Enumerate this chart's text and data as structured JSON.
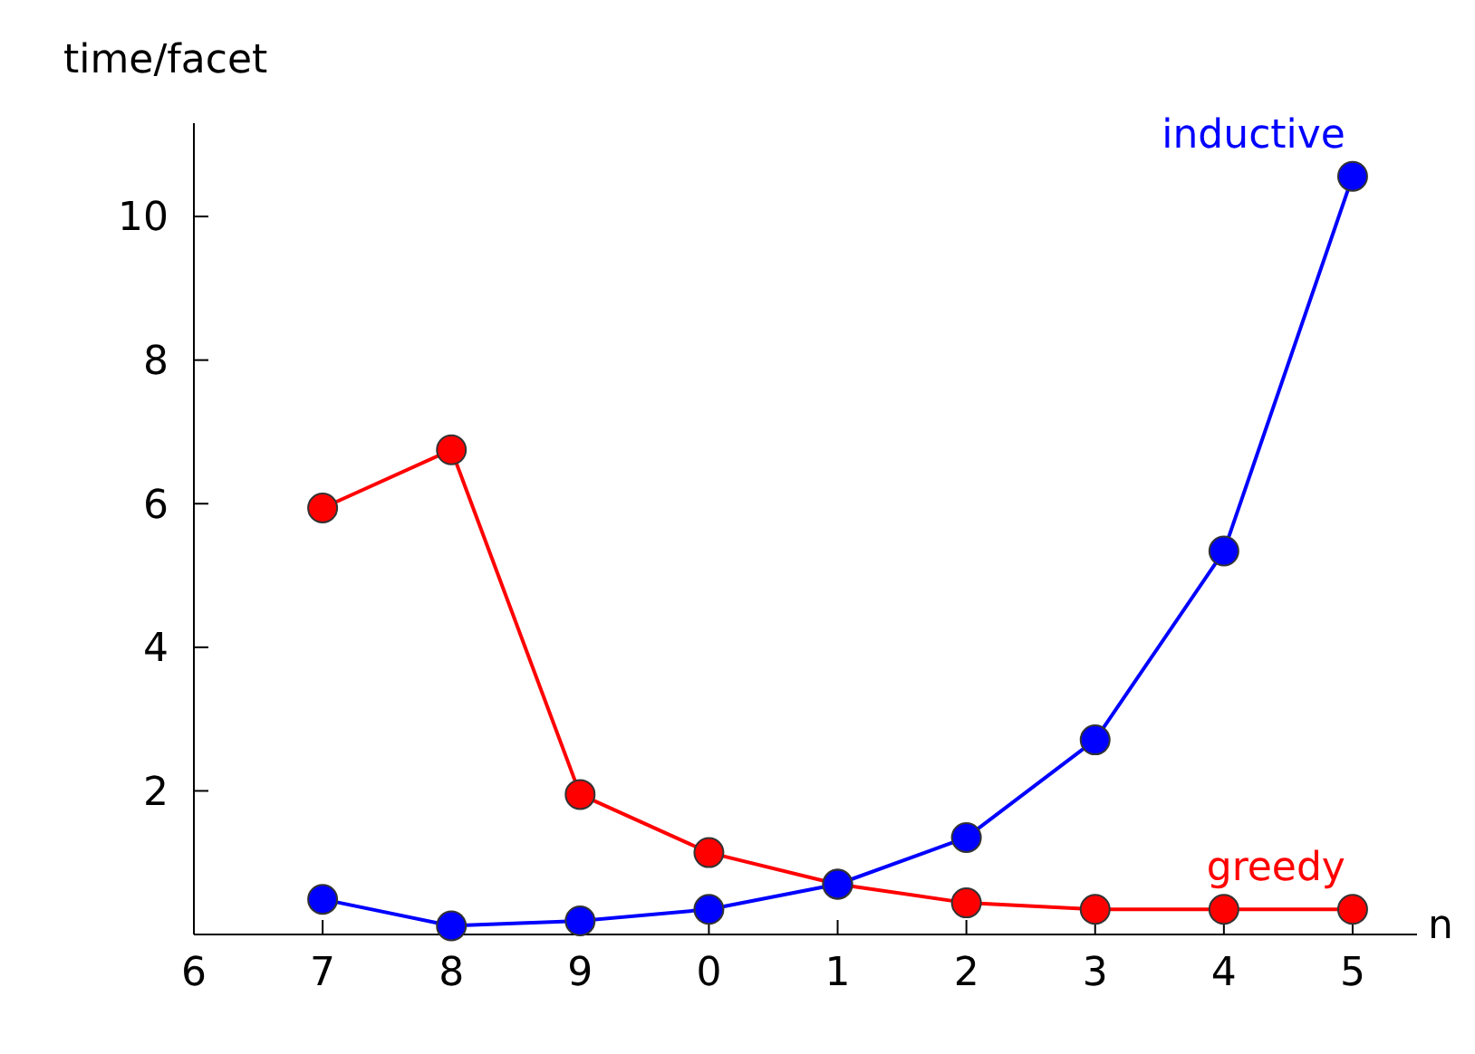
{
  "chart_data": {
    "type": "line",
    "ylabel": "time/facet",
    "xlabel": "n",
    "categories": [
      "6",
      "7",
      "8",
      "9",
      "0",
      "1",
      "2",
      "3",
      "4",
      "5"
    ],
    "ylim": [
      0,
      11.3
    ],
    "yticks": [
      2,
      4,
      6,
      8,
      10
    ],
    "marker": "circle",
    "series": [
      {
        "name": "greedy",
        "color": "#ff0000",
        "values": [
          null,
          5.94,
          6.75,
          1.95,
          1.14,
          0.7,
          0.44,
          0.35,
          0.35,
          0.35
        ]
      },
      {
        "name": "inductive",
        "color": "#0000ff",
        "values": [
          null,
          0.49,
          0.12,
          0.19,
          0.35,
          0.7,
          1.35,
          2.71,
          5.34,
          10.56
        ]
      }
    ]
  }
}
